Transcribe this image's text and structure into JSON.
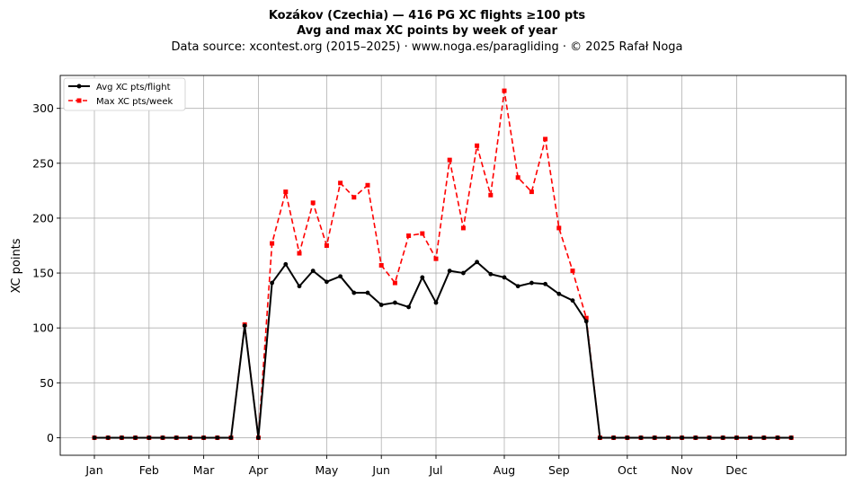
{
  "chart_data": {
    "type": "line",
    "title_line1": "Kozákov (Czechia)  —  416 PG XC flights ≥100 pts",
    "title_line2": "Avg and max XC points by week of year",
    "subtitle": "Data source: xcontest.org (2015–2025)  ·  www.noga.es/paragliding  ·  © 2025 Rafał Noga",
    "xlabel": "",
    "ylabel": "XC points",
    "xlim": [
      -2.5,
      55
    ],
    "ylim": [
      -16,
      330
    ],
    "yticks": [
      0,
      50,
      100,
      150,
      200,
      250,
      300
    ],
    "xticks": [
      {
        "label": "Jan",
        "week": 0
      },
      {
        "label": "Feb",
        "week": 4
      },
      {
        "label": "Mar",
        "week": 8
      },
      {
        "label": "Apr",
        "week": 12
      },
      {
        "label": "May",
        "week": 17
      },
      {
        "label": "Jun",
        "week": 21
      },
      {
        "label": "Jul",
        "week": 25
      },
      {
        "label": "Aug",
        "week": 30
      },
      {
        "label": "Sep",
        "week": 34
      },
      {
        "label": "Oct",
        "week": 39
      },
      {
        "label": "Nov",
        "week": 43
      },
      {
        "label": "Dec",
        "week": 47
      }
    ],
    "grid": true,
    "legend_position": "top-left",
    "x": [
      0,
      1,
      2,
      3,
      4,
      5,
      6,
      7,
      8,
      9,
      10,
      11,
      12,
      13,
      14,
      15,
      16,
      17,
      18,
      19,
      20,
      21,
      22,
      23,
      24,
      25,
      26,
      27,
      28,
      29,
      30,
      31,
      32,
      33,
      34,
      35,
      36,
      37,
      38,
      39,
      40,
      41,
      42,
      43,
      44,
      45,
      46,
      47,
      48,
      49,
      50,
      51
    ],
    "series": [
      {
        "name": "Avg XC pts/flight",
        "color": "#000000",
        "style": "solid",
        "marker": "circle",
        "values": [
          0,
          0,
          0,
          0,
          0,
          0,
          0,
          0,
          0,
          0,
          0,
          102,
          0,
          141,
          158,
          138,
          152,
          142,
          147,
          132,
          132,
          121,
          123,
          119,
          146,
          123,
          152,
          150,
          160,
          149,
          146,
          138,
          141,
          140,
          131,
          125,
          106,
          0,
          0,
          0,
          0,
          0,
          0,
          0,
          0,
          0,
          0,
          0,
          0,
          0,
          0,
          0
        ]
      },
      {
        "name": "Max XC pts/week",
        "color": "#ff0000",
        "style": "dashed",
        "marker": "square",
        "values": [
          0,
          0,
          0,
          0,
          0,
          0,
          0,
          0,
          0,
          0,
          0,
          103,
          0,
          177,
          224,
          168,
          214,
          175,
          232,
          219,
          230,
          157,
          141,
          184,
          186,
          163,
          253,
          191,
          266,
          221,
          316,
          237,
          224,
          272,
          191,
          152,
          109,
          0,
          0,
          0,
          0,
          0,
          0,
          0,
          0,
          0,
          0,
          0,
          0,
          0,
          0,
          0
        ]
      }
    ]
  }
}
